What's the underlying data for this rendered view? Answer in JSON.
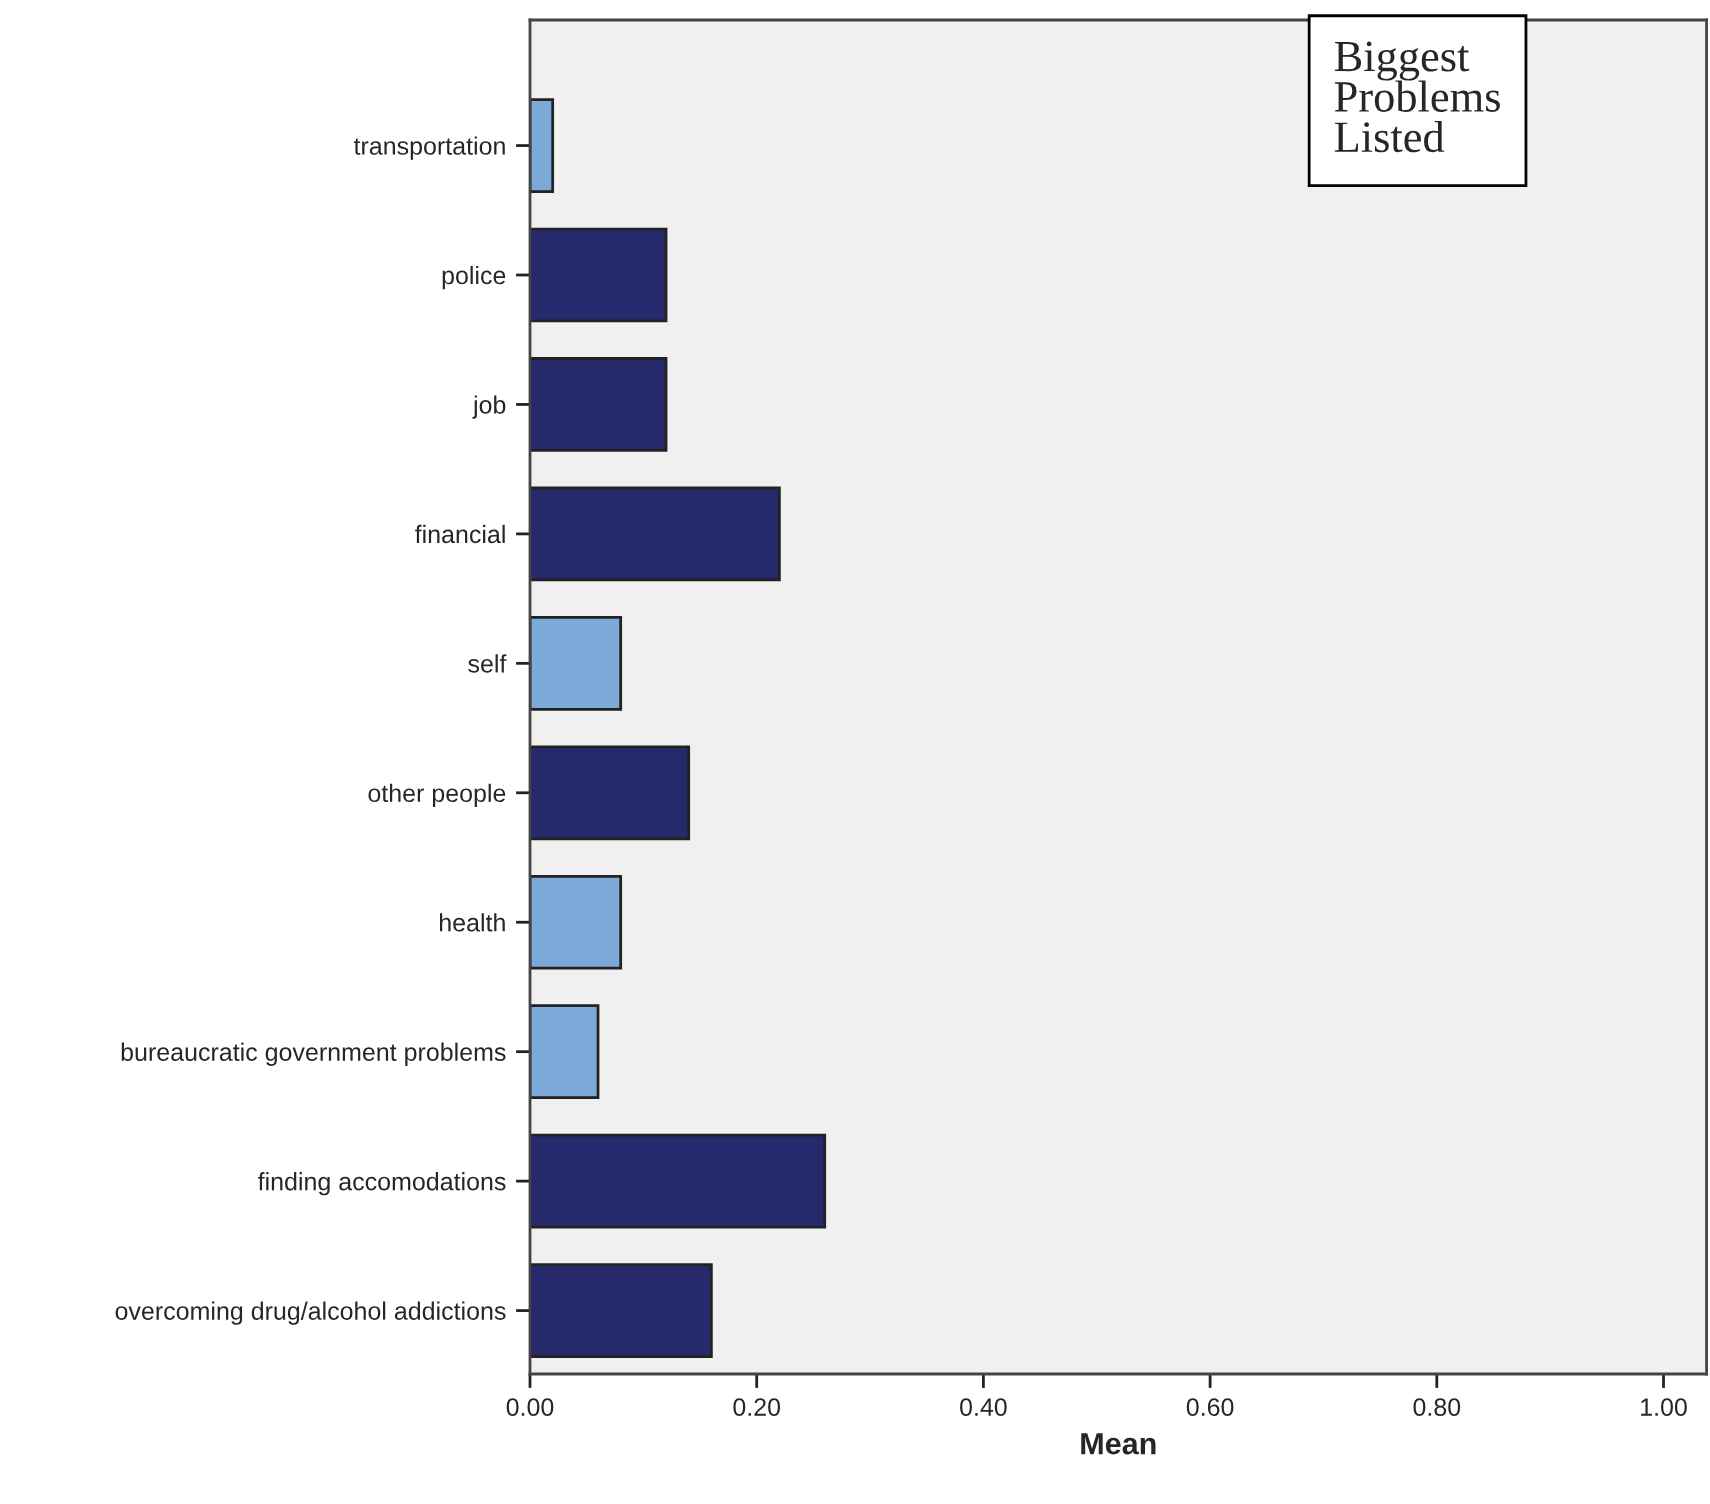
{
  "chart_data": {
    "type": "bar",
    "orientation": "horizontal",
    "title": "Biggest\nProblems\nListed",
    "xlabel": "Mean",
    "categories": [
      "transportation",
      "police",
      "job",
      "financial",
      "self",
      "other people",
      "health",
      "bureaucratic government problems",
      "finding accomodations",
      "overcoming drug/alcohol addictions"
    ],
    "values": [
      0.02,
      0.12,
      0.12,
      0.22,
      0.08,
      0.14,
      0.08,
      0.06,
      0.26,
      0.16
    ],
    "colors": [
      "#7baad8",
      "#27296d",
      "#27296d",
      "#27296d",
      "#7baad8",
      "#27296d",
      "#7baad8",
      "#7baad8",
      "#27296d",
      "#27296d"
    ],
    "xlim": [
      0,
      1.038
    ],
    "xticks": [
      {
        "value": 0,
        "label": "0.00"
      },
      {
        "value": 0.2,
        "label": "0.20"
      },
      {
        "value": 0.4,
        "label": "0.40"
      },
      {
        "value": 0.6,
        "label": "0.60"
      },
      {
        "value": 0.8,
        "label": "0.80"
      },
      {
        "value": 1,
        "label": "1.00"
      }
    ],
    "grid": false
  }
}
